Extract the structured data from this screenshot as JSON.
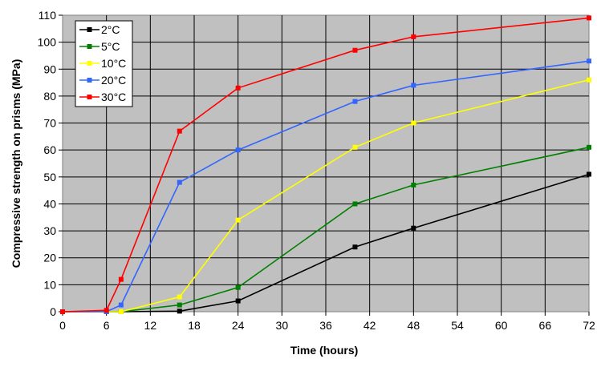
{
  "chart_data": {
    "type": "line",
    "title": "",
    "xlabel": "Time (hours)",
    "ylabel": "Compressive strength on prisms (MPa)",
    "xlim": [
      0,
      72
    ],
    "ylim": [
      0,
      110
    ],
    "xticks": [
      0,
      6,
      12,
      18,
      24,
      30,
      36,
      42,
      48,
      54,
      60,
      66,
      72
    ],
    "yticks": [
      0,
      10,
      20,
      30,
      40,
      50,
      60,
      70,
      80,
      90,
      100,
      110
    ],
    "grid": true,
    "background": "#c0c0c0",
    "legend_position": "top-left",
    "series": [
      {
        "name": "2°C",
        "color": "#000000",
        "x": [
          0,
          6,
          8,
          16,
          24,
          40,
          48,
          72
        ],
        "y": [
          0,
          0,
          0,
          0.2,
          4,
          24,
          31,
          51
        ]
      },
      {
        "name": "5°C",
        "color": "#008000",
        "x": [
          0,
          6,
          8,
          16,
          24,
          40,
          48,
          72
        ],
        "y": [
          0,
          0,
          0,
          2.5,
          9,
          40,
          47,
          61
        ]
      },
      {
        "name": "10°C",
        "color": "#ffff00",
        "x": [
          0,
          6,
          8,
          16,
          24,
          40,
          48,
          72
        ],
        "y": [
          0,
          0,
          0,
          5.5,
          34,
          61,
          70,
          86
        ]
      },
      {
        "name": "20°C",
        "color": "#3366ff",
        "x": [
          0,
          6,
          8,
          16,
          24,
          40,
          48,
          72
        ],
        "y": [
          0,
          0,
          2.5,
          48,
          60,
          78,
          84,
          93
        ]
      },
      {
        "name": "30°C",
        "color": "#ff0000",
        "x": [
          0,
          6,
          8,
          16,
          24,
          40,
          48,
          72
        ],
        "y": [
          0,
          0.5,
          12,
          67,
          83,
          97,
          102,
          109
        ]
      }
    ]
  }
}
